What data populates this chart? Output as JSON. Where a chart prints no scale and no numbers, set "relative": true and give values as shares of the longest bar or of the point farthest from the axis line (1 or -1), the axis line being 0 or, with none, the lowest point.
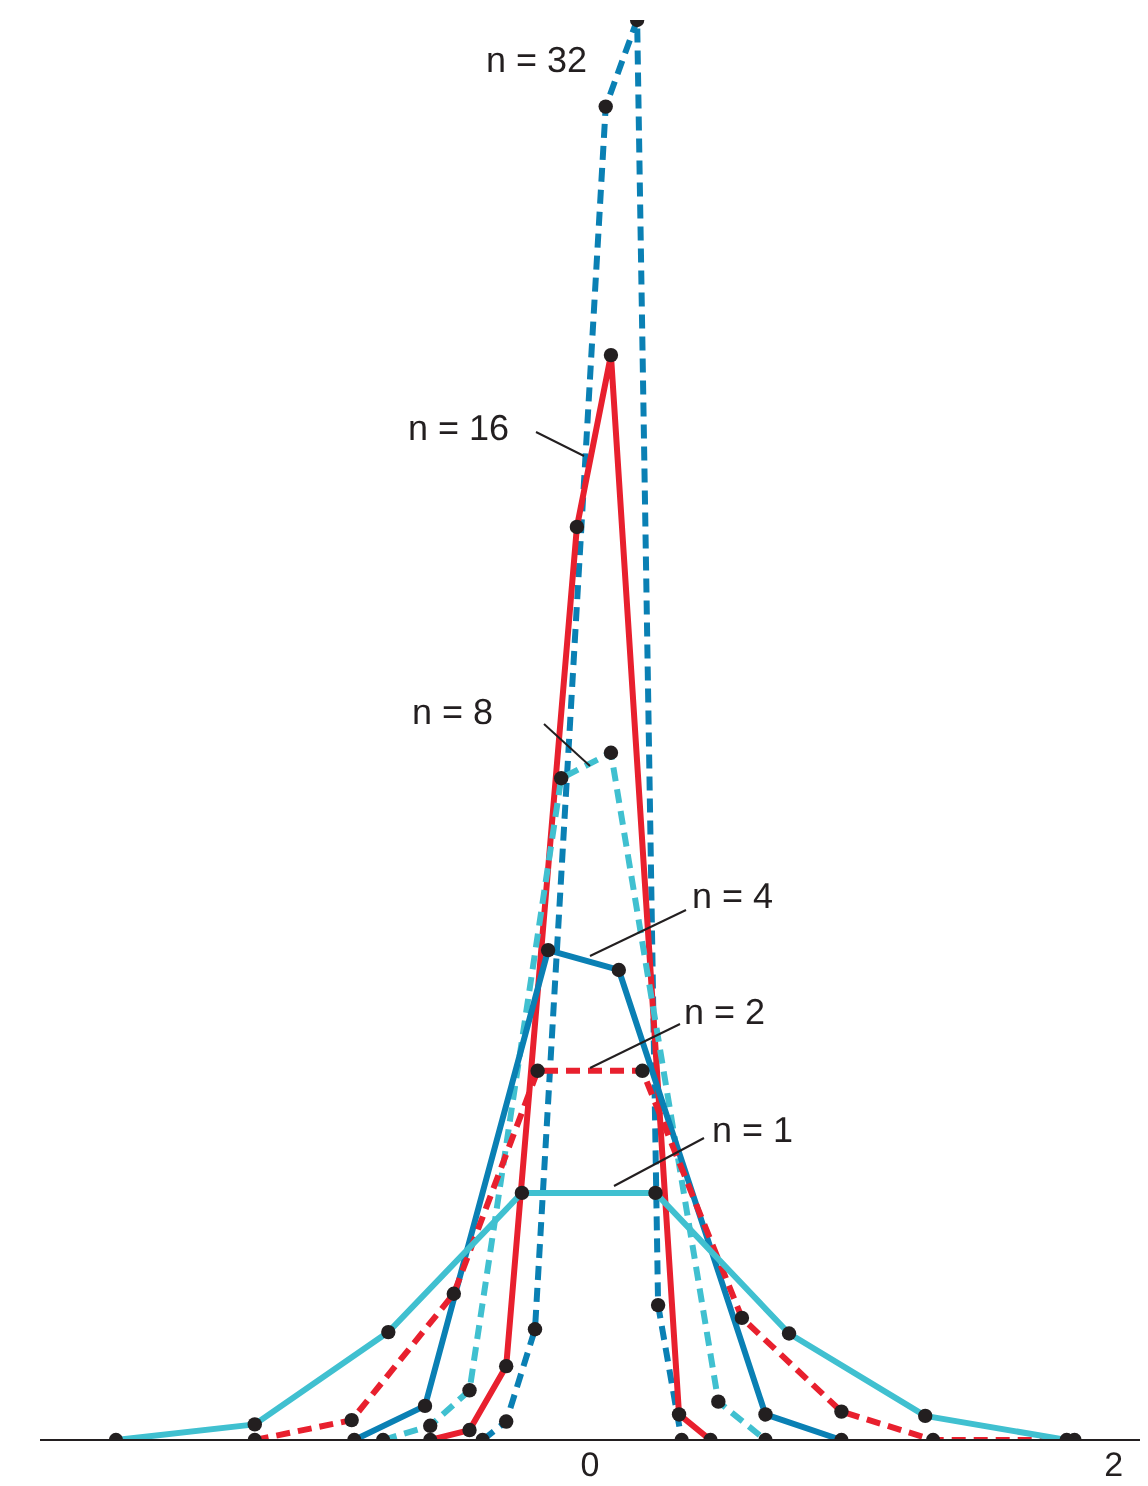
{
  "chart_data": {
    "type": "line",
    "relative": true,
    "xlim": [
      -2.1,
      2.1
    ],
    "xticks": [
      0,
      2
    ],
    "marker": "circle",
    "series": [
      {
        "name": "n = 32",
        "color": "#0a80b4",
        "line_style": "dashed",
        "x": [
          -0.41,
          -0.32,
          -0.21,
          0.06,
          0.18,
          0.26,
          0.35
        ],
        "values": [
          0,
          0.013,
          0.078,
          0.939,
          1,
          0.095,
          0
        ]
      },
      {
        "name": "n = 16",
        "color": "#e8202e",
        "line_style": "solid",
        "x": [
          -0.61,
          -0.46,
          -0.32,
          -0.05,
          0.08,
          0.34,
          0.46
        ],
        "values": [
          0,
          0.007,
          0.052,
          0.643,
          0.764,
          0.018,
          0
        ]
      },
      {
        "name": "n = 8",
        "color": "#40c0d0",
        "line_style": "dashed",
        "x": [
          -0.79,
          -0.61,
          -0.46,
          -0.11,
          0.08,
          0.49,
          0.67
        ],
        "values": [
          0,
          0.01,
          0.035,
          0.466,
          0.484,
          0.027,
          0
        ]
      },
      {
        "name": "n = 4",
        "color": "#0a80b4",
        "line_style": "solid",
        "x": [
          -0.9,
          -0.63,
          -0.16,
          0.11,
          0.67,
          0.96
        ],
        "values": [
          0,
          0.024,
          0.345,
          0.331,
          0.018,
          0
        ]
      },
      {
        "name": "n = 2",
        "color": "#e8202e",
        "line_style": "dashed",
        "x": [
          -1.28,
          -0.91,
          -0.52,
          -0.2,
          0.2,
          0.58,
          0.96,
          1.31,
          1.85
        ],
        "values": [
          0,
          0.014,
          0.103,
          0.26,
          0.26,
          0.086,
          0.02,
          0,
          0
        ]
      },
      {
        "name": "n = 1",
        "color": "#40c0d0",
        "line_style": "solid",
        "x": [
          -1.81,
          -1.28,
          -0.77,
          -0.26,
          0.25,
          0.76,
          1.28,
          1.82
        ],
        "values": [
          0,
          0.011,
          0.076,
          0.174,
          0.174,
          0.075,
          0.017,
          0
        ]
      }
    ]
  }
}
